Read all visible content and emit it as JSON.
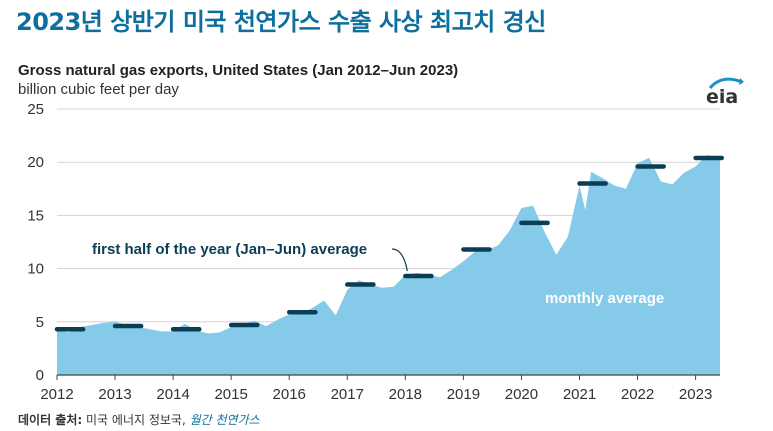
{
  "headline": "2023년 상반기 미국 천연가스 수출 사상 최고치 경신",
  "logo_text": "eia",
  "source": {
    "label": "데이터 출처:",
    "agency": "미국 에너지 정보국,",
    "publication": "월간 천연가스"
  },
  "colors": {
    "area": "#85cae9",
    "avg_marker": "#0b3d55",
    "headline": "#0e6f9e",
    "axis": "#333333"
  },
  "chart_data": {
    "type": "area",
    "title": "Gross natural gas exports, United States (Jan 2012–Jun 2023)",
    "subtitle": "billion cubic feet per day",
    "ylim": [
      0,
      25
    ],
    "yticks": [
      0,
      5,
      10,
      15,
      20,
      25
    ],
    "xlim": [
      2012,
      2023.42
    ],
    "xticks": [
      "2012",
      "2013",
      "2014",
      "2015",
      "2016",
      "2017",
      "2018",
      "2019",
      "2020",
      "2021",
      "2022",
      "2023"
    ],
    "grid": true,
    "annotations": {
      "half_year_label": "first half of the year (Jan–Jun) average",
      "monthly_label": "monthly average"
    },
    "series": [
      {
        "name": "monthly average",
        "x": [
          2012.0,
          2012.2,
          2012.4,
          2012.6,
          2012.8,
          2013.0,
          2013.2,
          2013.4,
          2013.6,
          2013.8,
          2014.0,
          2014.2,
          2014.4,
          2014.6,
          2014.8,
          2015.0,
          2015.2,
          2015.4,
          2015.6,
          2015.8,
          2016.0,
          2016.2,
          2016.4,
          2016.6,
          2016.8,
          2017.0,
          2017.2,
          2017.4,
          2017.6,
          2017.8,
          2018.0,
          2018.2,
          2018.4,
          2018.6,
          2018.8,
          2019.0,
          2019.2,
          2019.4,
          2019.6,
          2019.8,
          2020.0,
          2020.2,
          2020.4,
          2020.6,
          2020.8,
          2021.0,
          2021.1,
          2021.2,
          2021.4,
          2021.6,
          2021.8,
          2022.0,
          2022.2,
          2022.4,
          2022.6,
          2022.8,
          2023.0,
          2023.2,
          2023.42
        ],
        "values": [
          4.4,
          4.0,
          4.5,
          4.7,
          4.9,
          5.0,
          4.7,
          4.5,
          4.3,
          4.1,
          4.1,
          4.8,
          4.2,
          3.9,
          4.0,
          4.5,
          4.8,
          5.1,
          4.6,
          5.2,
          5.7,
          5.8,
          6.3,
          7.0,
          5.6,
          8.0,
          8.9,
          8.5,
          8.2,
          8.3,
          9.4,
          9.6,
          9.4,
          9.2,
          9.9,
          10.7,
          11.6,
          11.7,
          12.2,
          13.6,
          15.7,
          15.9,
          13.4,
          11.3,
          13.0,
          17.8,
          15.5,
          19.1,
          18.5,
          17.8,
          17.5,
          19.9,
          20.4,
          18.2,
          17.9,
          19.0,
          19.6,
          20.7,
          20.2
        ]
      },
      {
        "name": "first half of the year (Jan–Jun) average",
        "x": [
          2012,
          2013,
          2014,
          2015,
          2016,
          2017,
          2018,
          2019,
          2020,
          2021,
          2022,
          2023
        ],
        "values": [
          4.3,
          4.6,
          4.3,
          4.7,
          5.9,
          8.5,
          9.3,
          11.8,
          14.3,
          18.0,
          19.6,
          20.4
        ]
      }
    ]
  }
}
